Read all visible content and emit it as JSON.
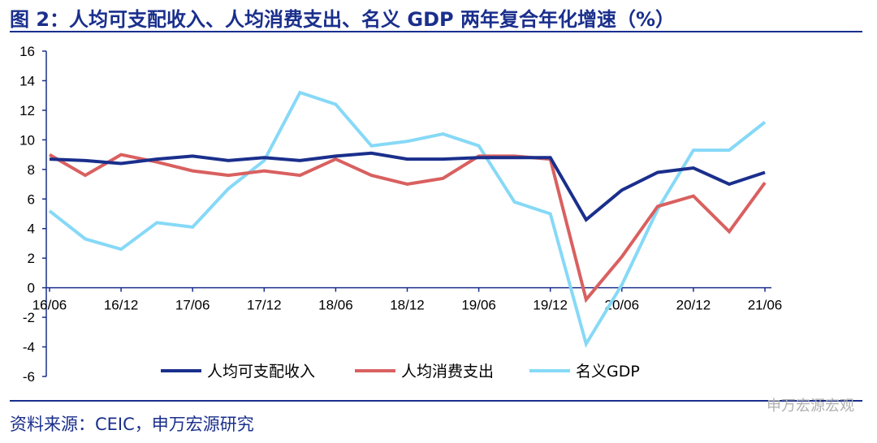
{
  "title": "图 2：人均可支配收入、人均消费支出、名义 GDP 两年复合年化增速（%）",
  "source": "资料来源：CEIC，申万宏源研究",
  "watermark": "申万宏源宏观",
  "chart_data": {
    "type": "line",
    "ylim": [
      -6,
      16
    ],
    "yticks": [
      16,
      14,
      12,
      10,
      8,
      6,
      4,
      2,
      0,
      -2,
      -4,
      -6
    ],
    "x": [
      "16/06",
      "16/09",
      "16/12",
      "17/03",
      "17/06",
      "17/09",
      "17/12",
      "18/03",
      "18/06",
      "18/09",
      "18/12",
      "19/03",
      "19/06",
      "19/09",
      "19/12",
      "20/03",
      "20/06",
      "20/09",
      "20/12",
      "21/03",
      "21/06"
    ],
    "xtick_labels": [
      "16/06",
      "16/12",
      "17/06",
      "17/12",
      "18/06",
      "18/12",
      "19/06",
      "19/12",
      "20/06",
      "20/12",
      "21/06"
    ],
    "series": [
      {
        "name": "人均可支配收入",
        "color": "#1a2f8c",
        "values": [
          8.7,
          8.6,
          8.4,
          8.7,
          8.9,
          8.6,
          8.8,
          8.6,
          8.9,
          9.1,
          8.7,
          8.7,
          8.8,
          8.8,
          8.8,
          4.6,
          6.6,
          7.8,
          8.1,
          7.0,
          7.8
        ]
      },
      {
        "name": "人均消费支出",
        "color": "#d96060",
        "values": [
          9.0,
          7.6,
          9.0,
          8.5,
          7.9,
          7.6,
          7.9,
          7.6,
          8.7,
          7.6,
          7.0,
          7.4,
          8.9,
          8.9,
          8.7,
          -0.8,
          2.1,
          5.5,
          6.2,
          3.8,
          7.1
        ]
      },
      {
        "name": "名义GDP",
        "color": "#86d9f7",
        "values": [
          5.2,
          3.3,
          2.6,
          4.4,
          4.1,
          6.7,
          8.6,
          13.2,
          12.4,
          9.6,
          9.9,
          10.4,
          9.6,
          5.8,
          5.0,
          -3.8,
          0.2,
          5.3,
          9.3,
          9.3,
          11.2
        ]
      }
    ]
  }
}
